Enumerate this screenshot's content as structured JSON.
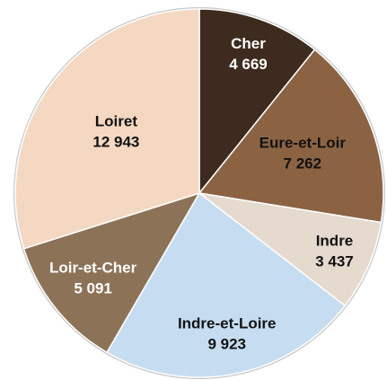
{
  "chart_data": {
    "type": "pie",
    "categories": [
      "Cher",
      "Eure-et-Loir",
      "Indre",
      "Indre-et-Loire",
      "Loir-et-Cher",
      "Loiret"
    ],
    "values": [
      4669,
      7262,
      3437,
      9923,
      5091,
      12943
    ],
    "value_labels": [
      "4 669",
      "7 262",
      "3 437",
      "9 923",
      "5 091",
      "12 943"
    ],
    "colors": [
      "#3d2b1f",
      "#8b6343",
      "#e6dacf",
      "#c6ddf1",
      "#8c7358",
      "#f4d8c2"
    ],
    "label_colors": [
      "#ffffff",
      "#111111",
      "#111111",
      "#111111",
      "#ffffff",
      "#111111"
    ]
  }
}
